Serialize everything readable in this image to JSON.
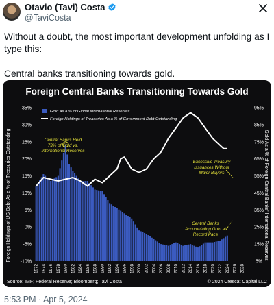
{
  "post": {
    "author_name": "Otavio (Tavi) Costa",
    "author_handle": "@TaviCosta",
    "text_line1": "Without a doubt, the most important development unfolding as I type this:",
    "text_line2": "Central banks transitioning towards gold.",
    "timestamp": "5:53 PM · Apr 5, 2024"
  },
  "icons": {
    "verified": "verified-check-icon",
    "close": "close-icon",
    "avatar": "avatar"
  },
  "colors": {
    "verified_blue": "#1d9bf0",
    "bar_fill": "#3b5bc0",
    "line_stroke": "#ffffff",
    "annotation": "#e6e33a"
  },
  "chart_data": {
    "type": "bar",
    "title": "Foreign Central Banks Transitioning Towards Gold",
    "ylabel_left": "Foreign Holdings of US Debt As a % of Treasuries Outstanding",
    "ylabel_right": "Gold As a % of Foreign Central Banks' International Reserves",
    "left_axis_ticks": [
      "35%",
      "30%",
      "25%",
      "20%",
      "15%",
      "10%",
      "5%",
      "0%",
      "-5%",
      "-10%"
    ],
    "right_axis_ticks": [
      "95%",
      "85%",
      "75%",
      "65%",
      "55%",
      "45%",
      "35%",
      "25%",
      "15%",
      "5%"
    ],
    "x_ticks": [
      "1972",
      "1974",
      "1976",
      "1978",
      "1980",
      "1982",
      "1984",
      "1986",
      "1988",
      "1990",
      "1992",
      "1994",
      "1996",
      "1998",
      "2000",
      "2002",
      "2004",
      "2006",
      "2008",
      "2010",
      "2012",
      "2014",
      "2016",
      "2018",
      "2020",
      "2022",
      "2024",
      "2026",
      "2028"
    ],
    "legend": [
      {
        "name": "Gold As a % of Global International Reserves",
        "style": "bars"
      },
      {
        "name": "Foreign Holdings of Treasuries As a % of Government Debt Outstanding",
        "style": "line"
      }
    ],
    "annotations": [
      "Central Banks Held",
      "73% of Gold vs.",
      "International Reserves",
      "Excessive Treasury",
      "Issuances Without",
      "Major Buyers",
      "Central Banks",
      "Accumulating Gold at",
      "Record Pace"
    ],
    "ylim_left": [
      -10,
      35
    ],
    "ylim_right": [
      5,
      95
    ],
    "gold_series": {
      "name": "Gold As a % of Global International Reserves",
      "axis": "right",
      "x": [
        1972,
        1974,
        1976,
        1978,
        1979,
        1980,
        1981,
        1982,
        1984,
        1986,
        1988,
        1990,
        1992,
        1994,
        1996,
        1998,
        2000,
        2002,
        2004,
        2006,
        2008,
        2010,
        2012,
        2014,
        2016,
        2018,
        2020,
        2022,
        2024
      ],
      "values": [
        49,
        56,
        52,
        55,
        64,
        73,
        62,
        58,
        52,
        52,
        47,
        46,
        39,
        36,
        33,
        30,
        23,
        21,
        18,
        15,
        14,
        16,
        14,
        15,
        13,
        16,
        16,
        17,
        20
      ]
    },
    "treasury_series": {
      "name": "Foreign Holdings of Treasuries As a % of Government Debt Outstanding",
      "axis": "left",
      "x": [
        1972,
        1974,
        1976,
        1978,
        1980,
        1982,
        1984,
        1986,
        1988,
        1990,
        1992,
        1994,
        1995,
        1996,
        1998,
        2000,
        2002,
        2004,
        2006,
        2008,
        2010,
        2012,
        2014,
        2016,
        2018,
        2020,
        2022,
        2023,
        2024
      ],
      "values": [
        12,
        14.5,
        14,
        13.5,
        14,
        14.5,
        13.5,
        12,
        14,
        13,
        15,
        17,
        20,
        20.5,
        17,
        16,
        17,
        20,
        22,
        26,
        29,
        32,
        33.5,
        32,
        29,
        26,
        24,
        23,
        23
      ]
    },
    "source": "Source: IMF; Federal Reserve; Bloomberg; Tavi Costa",
    "copyright": "© 2024 Crescat Capital LLC"
  }
}
